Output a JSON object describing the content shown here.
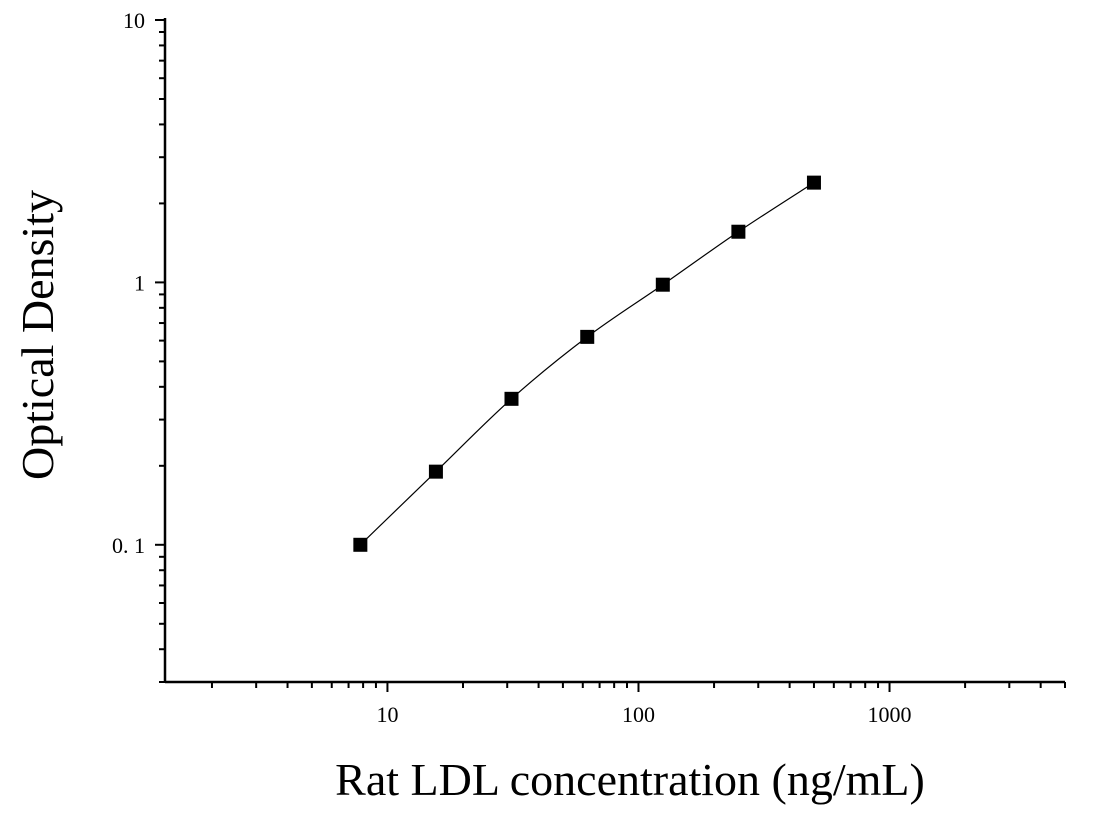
{
  "chart_data": {
    "type": "scatter",
    "title": "",
    "xlabel": "Rat LDL concentration (ng/mL)",
    "ylabel": "Optical Density",
    "x_scale": "log",
    "y_scale": "log",
    "xlim": [
      1.3,
      5000
    ],
    "ylim": [
      0.03,
      10
    ],
    "x_tick_labels": [
      {
        "value": 10,
        "label": "10"
      },
      {
        "value": 100,
        "label": "100"
      },
      {
        "value": 1000,
        "label": "1000"
      }
    ],
    "y_tick_labels": [
      {
        "value": 0.1,
        "label": "0. 1"
      },
      {
        "value": 1,
        "label": "1"
      },
      {
        "value": 10,
        "label": "10"
      }
    ],
    "grid": false,
    "legend": "none",
    "series": [
      {
        "marker": "square",
        "fit_line": true,
        "color": "#000000",
        "x": [
          7.8,
          15.6,
          31.2,
          62.5,
          125,
          250,
          500
        ],
        "y": [
          0.1,
          0.19,
          0.36,
          0.62,
          0.98,
          1.56,
          2.4
        ]
      }
    ]
  }
}
